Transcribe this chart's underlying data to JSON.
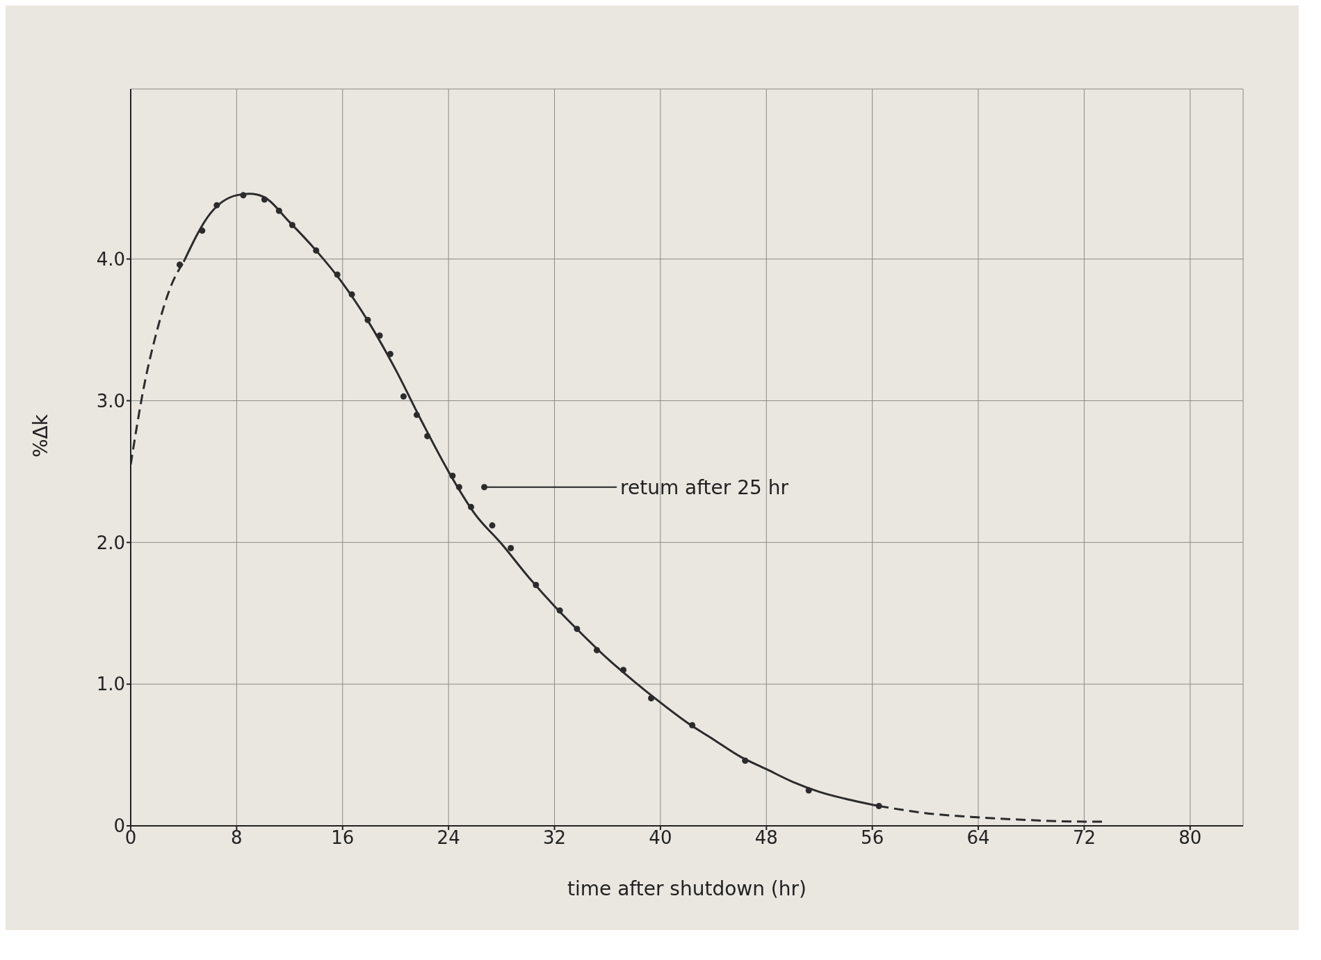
{
  "chart_data": {
    "type": "scatter",
    "xlabel": "time after shutdown (hr)",
    "ylabel": "%Δk",
    "xlim": [
      0,
      84
    ],
    "ylim": [
      0,
      5.2
    ],
    "xticks": [
      0,
      8,
      16,
      24,
      32,
      40,
      48,
      56,
      64,
      72,
      80
    ],
    "yticks": [
      0,
      {
        "value": 1,
        "label": "1.0"
      },
      {
        "value": 2,
        "label": "2.0"
      },
      {
        "value": 3,
        "label": "3.0"
      },
      {
        "value": 4,
        "label": "4.0"
      }
    ],
    "grid": true,
    "series": [
      {
        "color": "#2b2b2b",
        "marker": "circle",
        "x": [
          3.7,
          5.4,
          6.5,
          8.5,
          10.1,
          11.2,
          12.2,
          14.0,
          15.6,
          16.7,
          17.9,
          18.8,
          19.6,
          20.6,
          21.6,
          22.4,
          24.3,
          24.8,
          25.7,
          26.7,
          27.3,
          28.7,
          30.6,
          32.4,
          33.7,
          35.2,
          37.2,
          39.3,
          42.4,
          46.4,
          51.2,
          56.5
        ],
        "values": [
          3.96,
          4.2,
          4.38,
          4.45,
          4.42,
          4.34,
          4.24,
          4.06,
          3.89,
          3.75,
          3.57,
          3.46,
          3.33,
          3.03,
          2.9,
          2.75,
          2.47,
          2.39,
          2.25,
          2.39,
          2.12,
          1.96,
          1.7,
          1.52,
          1.39,
          1.24,
          1.1,
          0.9,
          0.71,
          0.46,
          0.25,
          0.14
        ]
      },
      {
        "type": "line",
        "color": "#2b2b2b",
        "line_style": "solid",
        "marker": "none",
        "x": [
          4,
          6,
          8,
          9,
          10,
          12,
          14,
          16,
          18,
          20,
          22,
          24,
          26,
          28,
          30,
          32,
          34,
          36,
          38,
          40,
          42,
          44,
          46,
          48,
          50,
          52,
          54,
          56.5
        ],
        "values": [
          3.98,
          4.32,
          4.45,
          4.46,
          4.44,
          4.26,
          4.06,
          3.83,
          3.55,
          3.22,
          2.85,
          2.5,
          2.2,
          1.99,
          1.76,
          1.55,
          1.36,
          1.18,
          1.02,
          0.87,
          0.73,
          0.61,
          0.49,
          0.4,
          0.31,
          0.24,
          0.19,
          0.14
        ]
      },
      {
        "type": "line",
        "color": "#2b2b2b",
        "line_style": "dashed",
        "marker": "none",
        "x": [
          0,
          1,
          2,
          3,
          4
        ],
        "values": [
          2.55,
          3.1,
          3.5,
          3.8,
          3.98
        ]
      },
      {
        "type": "line",
        "color": "#2b2b2b",
        "line_style": "dashed",
        "marker": "none",
        "x": [
          56.5,
          60,
          64,
          68,
          72,
          73.5
        ],
        "values": [
          0.14,
          0.09,
          0.06,
          0.04,
          0.03,
          0.03
        ]
      }
    ],
    "annotations": [
      {
        "text": "retum after 25 hr",
        "x": 26.7,
        "y": 2.39
      }
    ]
  }
}
